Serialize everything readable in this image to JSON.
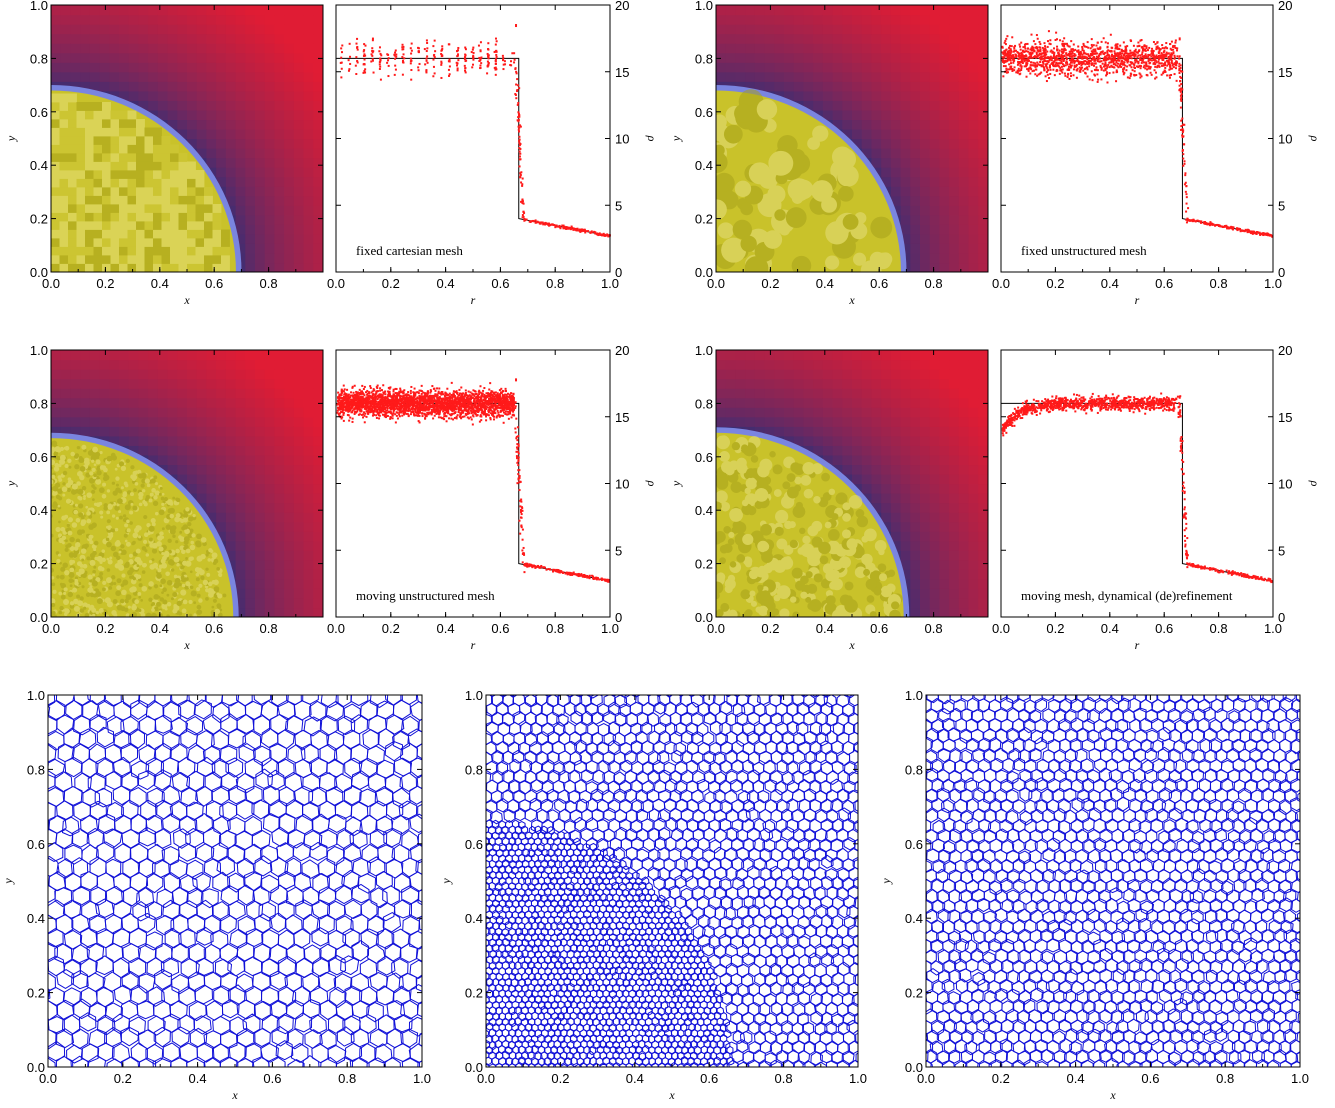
{
  "colors": {
    "shocked_region": "#c9c22a",
    "shell_edge": "#7a85e0",
    "outer_near": "#2a2f7a",
    "outer_far": "#e01c34",
    "sim_points": "#ff1a1a",
    "analytic_line": "#000000",
    "mesh_lines": "#1010d8"
  },
  "chart_data": [
    {
      "type": "heatmap",
      "variant": "cartesian",
      "xlabel": "x",
      "ylabel": "y",
      "xlim": [
        0,
        1
      ],
      "ylim": [
        0,
        1
      ],
      "xticks": [
        "0.0",
        "0.2",
        "0.4",
        "0.6",
        "0.8"
      ],
      "yticks": [
        "0.0",
        "0.2",
        "0.4",
        "0.6",
        "0.8",
        "1.0"
      ],
      "shock_radius": 0.68
    },
    {
      "type": "scatter",
      "label": "fixed cartesian mesh",
      "xlabel": "r",
      "ylabel": "ρ",
      "xlim": [
        0,
        1
      ],
      "ylim": [
        0,
        20
      ],
      "xticks": [
        "0.0",
        "0.2",
        "0.4",
        "0.6",
        "0.8",
        "1.0"
      ],
      "yticks": [
        "0",
        "5",
        "10",
        "15",
        "20"
      ],
      "analytic": {
        "plateau": 16,
        "shock_r": 0.667,
        "post_shock": 4,
        "outer_end": 2.7
      },
      "points": {
        "style": "columns",
        "n": 260,
        "scatter": 0.9,
        "spike": 18.5
      }
    },
    {
      "type": "heatmap",
      "variant": "voronoi",
      "xlabel": "x",
      "ylabel": "y",
      "xlim": [
        0,
        1
      ],
      "ylim": [
        0,
        1
      ],
      "xticks": [
        "0.0",
        "0.2",
        "0.4",
        "0.6",
        "0.8"
      ],
      "yticks": [
        "0.0",
        "0.2",
        "0.4",
        "0.6",
        "0.8",
        "1.0"
      ],
      "shock_radius": 0.68
    },
    {
      "type": "scatter",
      "label": "fixed unstructured mesh",
      "xlabel": "r",
      "ylabel": "ρ",
      "xlim": [
        0,
        1
      ],
      "ylim": [
        0,
        20
      ],
      "xticks": [
        "0.0",
        "0.2",
        "0.4",
        "0.6",
        "0.8",
        "1.0"
      ],
      "yticks": [
        "0",
        "5",
        "10",
        "15",
        "20"
      ],
      "analytic": {
        "plateau": 16,
        "shock_r": 0.667,
        "post_shock": 4,
        "outer_end": 2.7
      },
      "points": {
        "style": "cloud",
        "n": 1300,
        "scatter": 0.9,
        "spike": 17.5
      }
    },
    {
      "type": "heatmap",
      "variant": "noise",
      "xlabel": "x",
      "ylabel": "y",
      "xlim": [
        0,
        1
      ],
      "ylim": [
        0,
        1
      ],
      "xticks": [
        "0.0",
        "0.2",
        "0.4",
        "0.6",
        "0.8"
      ],
      "yticks": [
        "0.0",
        "0.2",
        "0.4",
        "0.6",
        "0.8",
        "1.0"
      ],
      "shock_radius": 0.67
    },
    {
      "type": "scatter",
      "label": "moving unstructured mesh",
      "xlabel": "r",
      "ylabel": "ρ",
      "xlim": [
        0,
        1
      ],
      "ylim": [
        0,
        20
      ],
      "xticks": [
        "0.0",
        "0.2",
        "0.4",
        "0.6",
        "0.8",
        "1.0"
      ],
      "yticks": [
        "0",
        "5",
        "10",
        "15",
        "20"
      ],
      "analytic": {
        "plateau": 16,
        "shock_r": 0.667,
        "post_shock": 4,
        "outer_end": 2.7
      },
      "points": {
        "style": "band",
        "n": 2600,
        "scatter": 0.7,
        "spike": 17.8
      }
    },
    {
      "type": "heatmap",
      "variant": "smooth",
      "xlabel": "x",
      "ylabel": "y",
      "xlim": [
        0,
        1
      ],
      "ylim": [
        0,
        1
      ],
      "xticks": [
        "0.0",
        "0.2",
        "0.4",
        "0.6",
        "0.8"
      ],
      "yticks": [
        "0.0",
        "0.2",
        "0.4",
        "0.6",
        "0.8",
        "1.0"
      ],
      "shock_radius": 0.69
    },
    {
      "type": "scatter",
      "label": "moving mesh, dynamical (de)refinement",
      "xlabel": "r",
      "ylabel": "ρ",
      "xlim": [
        0,
        1
      ],
      "ylim": [
        0,
        20
      ],
      "xticks": [
        "0.0",
        "0.2",
        "0.4",
        "0.6",
        "0.8",
        "1.0"
      ],
      "yticks": [
        "0",
        "5",
        "10",
        "15",
        "20"
      ],
      "analytic": {
        "plateau": 16,
        "shock_r": 0.667,
        "post_shock": 4,
        "outer_end": 2.7
      },
      "points": {
        "style": "ramp",
        "n": 1000,
        "scatter": 0.35,
        "spike": 16.5
      }
    },
    {
      "type": "mesh",
      "xlabel": "x",
      "ylabel": "y",
      "xlim": [
        0,
        1
      ],
      "ylim": [
        0,
        1
      ],
      "xticks": [
        "0.0",
        "0.2",
        "0.4",
        "0.6",
        "0.8",
        "1.0"
      ],
      "yticks": [
        "0.0",
        "0.2",
        "0.4",
        "0.6",
        "0.8",
        "1.0"
      ],
      "cells": {
        "spacing": 0.044,
        "refined_radius": 0,
        "refined_spacing": 0
      }
    },
    {
      "type": "mesh",
      "xlabel": "x",
      "ylabel": "y",
      "xlim": [
        0,
        1
      ],
      "ylim": [
        0,
        1
      ],
      "xticks": [
        "0.0",
        "0.2",
        "0.4",
        "0.6",
        "0.8",
        "1.0"
      ],
      "yticks": [
        "0.0",
        "0.2",
        "0.4",
        "0.6",
        "0.8",
        "1.0"
      ],
      "cells": {
        "spacing": 0.03,
        "refined_radius": 0.66,
        "refined_spacing": 0.0175
      }
    },
    {
      "type": "mesh",
      "xlabel": "x",
      "ylabel": "y",
      "xlim": [
        0,
        1
      ],
      "ylim": [
        0,
        1
      ],
      "xticks": [
        "0.0",
        "0.2",
        "0.4",
        "0.6",
        "0.8",
        "1.0"
      ],
      "yticks": [
        "0.0",
        "0.2",
        "0.4",
        "0.6",
        "0.8",
        "1.0"
      ],
      "cells": {
        "spacing": 0.031,
        "refined_radius": 0,
        "refined_spacing": 0
      }
    }
  ]
}
